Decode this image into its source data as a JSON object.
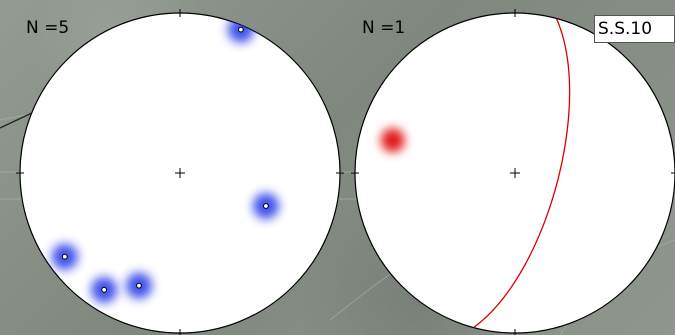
{
  "stereonets": [
    {
      "count_label": "N =5",
      "density_color": "#1f32e6",
      "poles": [
        {
          "trend": 234,
          "plunge": 12
        },
        {
          "trend": 213,
          "plunge": 14
        },
        {
          "trend": 200,
          "plunge": 26
        },
        {
          "trend": 111,
          "plunge": 42
        },
        {
          "trend": 23,
          "plunge": 3
        }
      ]
    },
    {
      "count_label": "N =1",
      "density_color": "#e00000",
      "pole": {
        "trend": 285,
        "plunge": 22
      },
      "plane": {
        "strike": 15,
        "dip": 68
      },
      "plane_color": "#dd0000"
    }
  ],
  "site_label": "S.S.10"
}
